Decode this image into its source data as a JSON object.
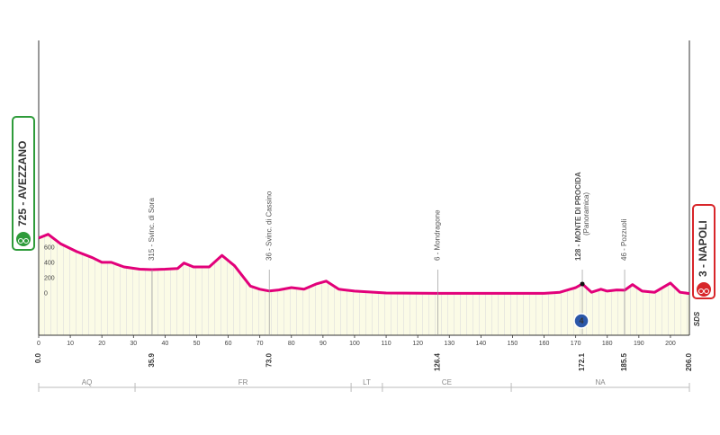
{
  "chart_data": {
    "type": "area",
    "start": "725 - AVEZZANO",
    "finish": "3 - NAPOLI",
    "logo": "SDS",
    "climb_category": "4",
    "x": [
      0,
      3,
      7,
      12,
      17,
      20,
      23,
      27,
      32,
      35.9,
      40,
      44,
      46,
      49,
      54,
      58,
      62,
      67,
      70,
      73,
      76,
      80,
      84,
      88,
      91,
      95,
      100,
      110,
      126.4,
      140,
      160,
      165,
      170,
      172.1,
      175,
      178,
      180,
      183,
      185.5,
      188,
      191,
      195,
      200,
      203,
      206
    ],
    "values": [
      725,
      775,
      650,
      550,
      470,
      410,
      410,
      350,
      320,
      315,
      320,
      330,
      400,
      350,
      350,
      500,
      365,
      100,
      60,
      36,
      50,
      80,
      60,
      130,
      165,
      60,
      35,
      10,
      6,
      5,
      5,
      20,
      80,
      128,
      20,
      60,
      35,
      50,
      46,
      120,
      35,
      20,
      140,
      20,
      3
    ],
    "color": "#e2007a",
    "xlim": [
      0,
      206
    ],
    "ylim": [
      -540,
      3300
    ],
    "xticks": [
      0,
      10,
      20,
      30,
      40,
      50,
      60,
      70,
      80,
      90,
      100,
      110,
      120,
      130,
      140,
      150,
      160,
      170,
      180,
      190,
      200
    ],
    "yticks": [
      0,
      200,
      400,
      600
    ],
    "waypoints": [
      {
        "km": {
          "value": 0,
          "label": "0.0"
        }
      },
      {
        "km": {
          "value": 35.9,
          "label": "35.9"
        },
        "label": "315 - Svinc. di Sora"
      },
      {
        "km": {
          "value": 73,
          "label": "73.0"
        },
        "label": "36 - Svinc. di Cassino"
      },
      {
        "km": {
          "value": 126.4,
          "label": "126.4"
        },
        "label": "6 - Mondragone"
      },
      {
        "km": {
          "value": 172.1,
          "label": "172.1"
        },
        "label": "128 - MONTE DI PROCIDA",
        "sublabel": "(Panoramica)"
      },
      {
        "km": {
          "value": 185.5,
          "label": "185.5"
        },
        "label": "46 - Pozzuoli"
      },
      {
        "km": {
          "value": 206,
          "label": "206.0"
        }
      }
    ],
    "regions": [
      {
        "name": "AQ",
        "start": 0,
        "end": 30.5
      },
      {
        "name": "FR",
        "start": 30.5,
        "end": 98.9
      },
      {
        "name": "LT",
        "start": 98.9,
        "end": 108.8
      },
      {
        "name": "CE",
        "start": 108.8,
        "end": 149.6
      },
      {
        "name": "NA",
        "start": 149.6,
        "end": 206
      }
    ]
  }
}
